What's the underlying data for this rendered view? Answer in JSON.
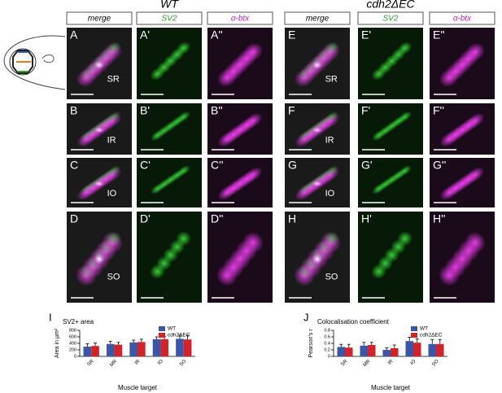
{
  "genotypes": [
    "WT",
    "cdh2ΔEC"
  ],
  "column_headers": [
    "merge",
    "SV2",
    "α-btx",
    "merge",
    "SV2",
    "α-btx"
  ],
  "panels": [
    {
      "letters": [
        "A",
        "A'",
        "A''",
        "E",
        "E'",
        "E''"
      ],
      "regions": [
        "SR",
        "SR"
      ]
    },
    {
      "letters": [
        "B",
        "B'",
        "B''",
        "F",
        "F'",
        "F''"
      ],
      "regions": [
        "IR",
        "IR"
      ]
    },
    {
      "letters": [
        "C",
        "C'",
        "C''",
        "G",
        "G'",
        "G''"
      ],
      "regions": [
        "IO",
        "IO"
      ]
    },
    {
      "letters": [
        "D",
        "D'",
        "D''",
        "H",
        "H'",
        "H''"
      ],
      "regions": [
        "SO",
        "SO"
      ]
    }
  ],
  "chart_data": [
    {
      "type": "bar",
      "panel_label": "I",
      "title": "SV2+ area",
      "ylabel": "Area in µm²",
      "xlabel": "Muscle target",
      "categories": [
        "SR",
        "MR",
        "IR",
        "IO",
        "SO"
      ],
      "series": [
        {
          "name": "WT",
          "color": "#3b56a6",
          "values": [
            300,
            380,
            430,
            530,
            540
          ],
          "errors": [
            90,
            80,
            70,
            70,
            110
          ]
        },
        {
          "name": "cdh2ΔEC",
          "color": "#d2232a",
          "values": [
            320,
            360,
            440,
            530,
            520
          ],
          "errors": [
            90,
            70,
            90,
            90,
            130
          ]
        }
      ],
      "ylim": [
        0,
        800
      ],
      "yticks": [
        0,
        200,
        400,
        600,
        800
      ]
    },
    {
      "type": "bar",
      "panel_label": "J",
      "title": "Colocalisation coefficient",
      "ylabel": "Pearson's r",
      "xlabel": "Muscle target",
      "categories": [
        "SR",
        "MR",
        "IR",
        "IO",
        "SO"
      ],
      "series": [
        {
          "name": "WT",
          "color": "#3b56a6",
          "values": [
            0.29,
            0.33,
            0.2,
            0.47,
            0.38
          ],
          "errors": [
            0.08,
            0.1,
            0.06,
            0.12,
            0.14
          ]
        },
        {
          "name": "cdh2ΔEC",
          "color": "#d2232a",
          "values": [
            0.27,
            0.35,
            0.25,
            0.42,
            0.38
          ],
          "errors": [
            0.1,
            0.08,
            0.1,
            0.12,
            0.14
          ]
        }
      ],
      "ylim": [
        0,
        0.8
      ],
      "yticks": [
        0,
        0.2,
        0.4,
        0.6,
        0.8
      ]
    }
  ]
}
